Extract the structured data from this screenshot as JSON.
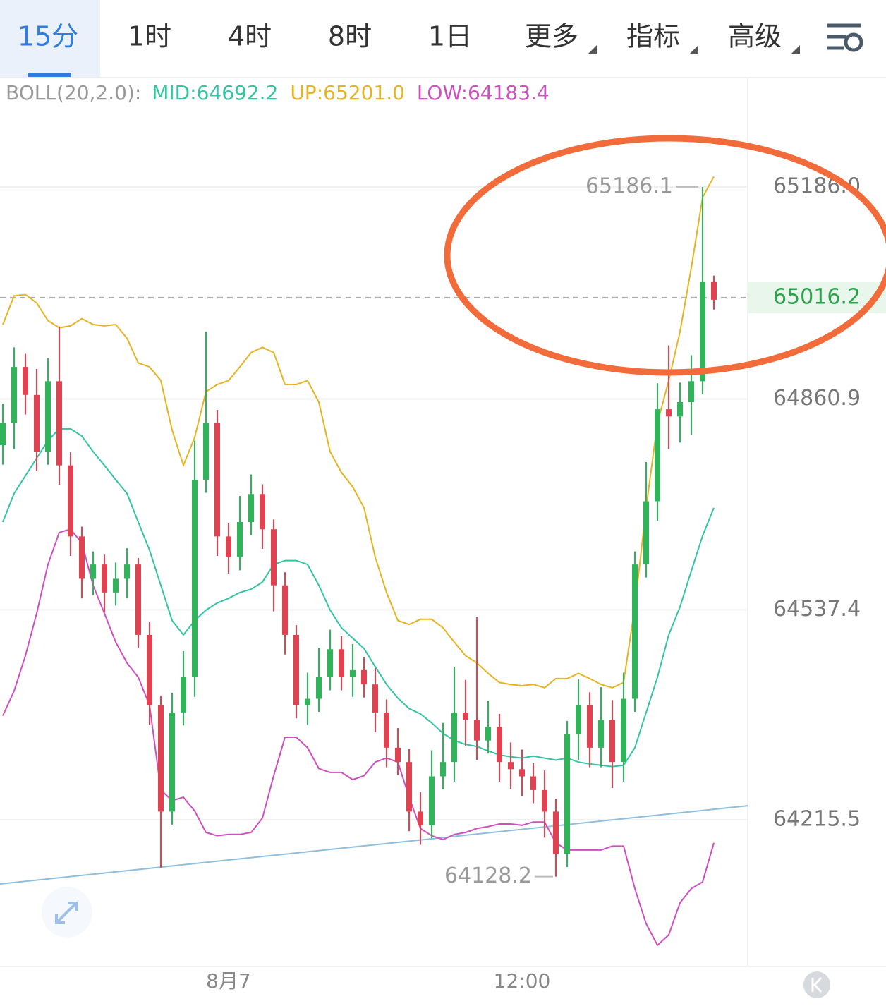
{
  "tabs": [
    "15分",
    "1时",
    "4时",
    "8时",
    "1日",
    "更多",
    "指标",
    "高级"
  ],
  "chart_data": {
    "type": "candlestick",
    "indicator": "BOLL(20,2.0):",
    "categories": [
      null,
      null,
      null,
      null,
      null,
      null,
      null,
      null,
      null,
      null,
      null,
      null,
      null,
      null,
      null,
      null,
      null,
      null,
      null,
      null,
      "8月7",
      null,
      null,
      null,
      null,
      null,
      null,
      null,
      null,
      null,
      null,
      null,
      null,
      null,
      null,
      null,
      null,
      null,
      null,
      null,
      null,
      null,
      null,
      null,
      null,
      null,
      "12:00",
      null,
      null,
      null,
      null,
      null,
      null,
      null,
      null,
      null,
      null,
      null,
      null,
      null,
      null,
      null,
      null,
      null
    ],
    "open": [
      64790,
      64824,
      64910,
      64867,
      64780,
      64888,
      64759,
      64650,
      64585,
      64607,
      64564,
      64585,
      64607,
      64499,
      64391,
      64228,
      64380,
      64434,
      64737,
      64824,
      64650,
      64618,
      64672,
      64715,
      64661,
      64575,
      64499,
      64391,
      64401,
      64434,
      64477,
      64434,
      64445,
      64423,
      64380,
      64326,
      64304,
      64228,
      64207,
      64282,
      64304,
      64380,
      64369,
      64337,
      64358,
      64304,
      64293,
      64282,
      64261,
      64228,
      64163,
      64347,
      64391,
      64326,
      64369,
      64304,
      64401,
      64607,
      64704,
      64845,
      64834,
      64856,
      64888,
      65040
    ],
    "high": [
      64854,
      64940,
      64930,
      64907,
      64923,
      64972,
      64779,
      64665,
      64627,
      64622,
      64610,
      64632,
      64617,
      64519,
      64406,
      64410,
      64474,
      64797,
      64964,
      64844,
      64670,
      64712,
      64745,
      64730,
      64676,
      64595,
      64514,
      64441,
      64479,
      64507,
      64497,
      64485,
      64465,
      64448,
      64400,
      64356,
      64324,
      64258,
      64322,
      64364,
      64450,
      64430,
      64526,
      64398,
      64378,
      64334,
      64323,
      64302,
      64291,
      64248,
      64367,
      64431,
      64411,
      64419,
      64399,
      64441,
      64627,
      64764,
      64885,
      64943,
      64886,
      64928,
      65186.1,
      65050
    ],
    "low": [
      64760,
      64784,
      64837,
      64750,
      64760,
      64729,
      64620,
      64555,
      64560,
      64534,
      64544,
      64555,
      64479,
      64361,
      64142,
      64208,
      64360,
      64404,
      64717,
      64620,
      64593,
      64598,
      64652,
      64631,
      64535,
      64469,
      64371,
      64361,
      64381,
      64414,
      64414,
      64404,
      64403,
      64350,
      64296,
      64284,
      64198,
      64177,
      64187,
      64262,
      64274,
      64329,
      64307,
      64317,
      64274,
      64263,
      64252,
      64241,
      64188,
      64128.2,
      64143,
      64307,
      64296,
      64296,
      64264,
      64274,
      64381,
      64587,
      64674,
      64784,
      64794,
      64806,
      64868,
      64998
    ],
    "close": [
      64824,
      64910,
      64867,
      64780,
      64888,
      64759,
      64650,
      64585,
      64607,
      64564,
      64585,
      64607,
      64499,
      64391,
      64228,
      64380,
      64434,
      64737,
      64824,
      64650,
      64618,
      64672,
      64715,
      64661,
      64575,
      64499,
      64391,
      64401,
      64434,
      64477,
      64434,
      64445,
      64423,
      64380,
      64326,
      64304,
      64228,
      64207,
      64282,
      64304,
      64380,
      64369,
      64337,
      64358,
      64304,
      64293,
      64282,
      64261,
      64228,
      64163,
      64347,
      64391,
      64326,
      64369,
      64304,
      64401,
      64607,
      64704,
      64845,
      64834,
      64856,
      64888,
      65040,
      65013
    ],
    "up_color": "#2fb45a",
    "down_color": "#e0434f",
    "series": [
      {
        "label": "MID:64692.2",
        "color": "#33c4a4",
        "values": [
          64672,
          64716,
          64743,
          64770,
          64797,
          64815,
          64815,
          64804,
          64780,
          64759,
          64737,
          64716,
          64672,
          64629,
          64575,
          64521,
          64499,
          64521,
          64537,
          64548,
          64555,
          64564,
          64569,
          64580,
          64607,
          64613,
          64613,
          64607,
          64575,
          64537,
          64510,
          64494,
          64478,
          64450,
          64423,
          64402,
          64386,
          64378,
          64364,
          64348,
          64337,
          64331,
          64328,
          64321,
          64315,
          64312,
          64310,
          64313,
          64310,
          64307,
          64310,
          64304,
          64301,
          64299,
          64297,
          64299,
          64326,
          64380,
          64434,
          64499,
          64542,
          64597,
          64651,
          64694
        ]
      },
      {
        "label": "UP:65201.0",
        "color": "#e6b422",
        "values": [
          64975,
          65019,
          65021,
          65008,
          64981,
          64970,
          64973,
          64984,
          64975,
          64973,
          64975,
          64954,
          64916,
          64910,
          64889,
          64813,
          64759,
          64802,
          64872,
          64883,
          64889,
          64910,
          64932,
          64940,
          64932,
          64883,
          64883,
          64889,
          64856,
          64780,
          64748,
          64726,
          64694,
          64618,
          64564,
          64521,
          64515,
          64523,
          64523,
          64510,
          64488,
          64467,
          64456,
          64440,
          64426,
          64423,
          64421,
          64423,
          64418,
          64432,
          64432,
          64440,
          64432,
          64423,
          64418,
          64426,
          64542,
          64694,
          64824,
          64889,
          64964,
          65062,
          65170,
          65202
        ]
      },
      {
        "label": "LOW:64183.4",
        "color": "#d04fbf",
        "values": [
          64375,
          64413,
          64467,
          64532,
          64607,
          64656,
          64661,
          64640,
          64575,
          64532,
          64488,
          64456,
          64434,
          64391,
          64261,
          64245,
          64250,
          64229,
          64196,
          64191,
          64193,
          64193,
          64196,
          64218,
          64283,
          64342,
          64342,
          64326,
          64294,
          64288,
          64288,
          64277,
          64283,
          64304,
          64310,
          64304,
          64250,
          64202,
          64191,
          64185,
          64193,
          64196,
          64202,
          64205,
          64209,
          64209,
          64207,
          64212,
          64212,
          64180,
          64169,
          64169,
          64169,
          64169,
          64175,
          64175,
          64110,
          64056,
          64023,
          64039,
          64088,
          64110,
          64120,
          64180
        ]
      }
    ],
    "trendline": {
      "color": "#8fbfdc",
      "values": [
        64117,
        64237
      ]
    },
    "last_price": 65016.2,
    "high_label": 65186.1,
    "low_label": 64128.2,
    "ylim": [
      63990.4,
      65353.7
    ],
    "yticks": [
      64215.5,
      64537.4,
      64860.9,
      {
        "value": 65186,
        "label": "65186.0"
      }
    ],
    "grid": true
  }
}
